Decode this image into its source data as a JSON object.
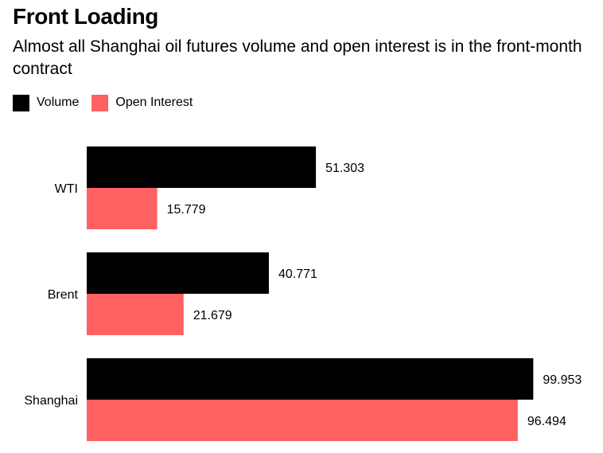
{
  "chart_data": {
    "type": "bar",
    "orientation": "horizontal",
    "title": "Front Loading",
    "subtitle": "Almost all Shanghai oil futures volume and open interest is in the front-month contract",
    "categories": [
      "WTI",
      "Brent",
      "Shanghai"
    ],
    "series": [
      {
        "name": "Volume",
        "color": "#000000",
        "values": [
          51.303,
          40.771,
          99.953
        ]
      },
      {
        "name": "Open Interest",
        "color": "#ff6163",
        "values": [
          15.779,
          21.679,
          96.494
        ]
      }
    ],
    "value_labels": [
      [
        "51.303",
        "40.771",
        "99.953"
      ],
      [
        "15.779",
        "21.679",
        "96.494"
      ]
    ],
    "xlim": [
      0,
      100
    ],
    "grid": false,
    "legend_position": "top-left",
    "xlabel": "",
    "ylabel": ""
  }
}
